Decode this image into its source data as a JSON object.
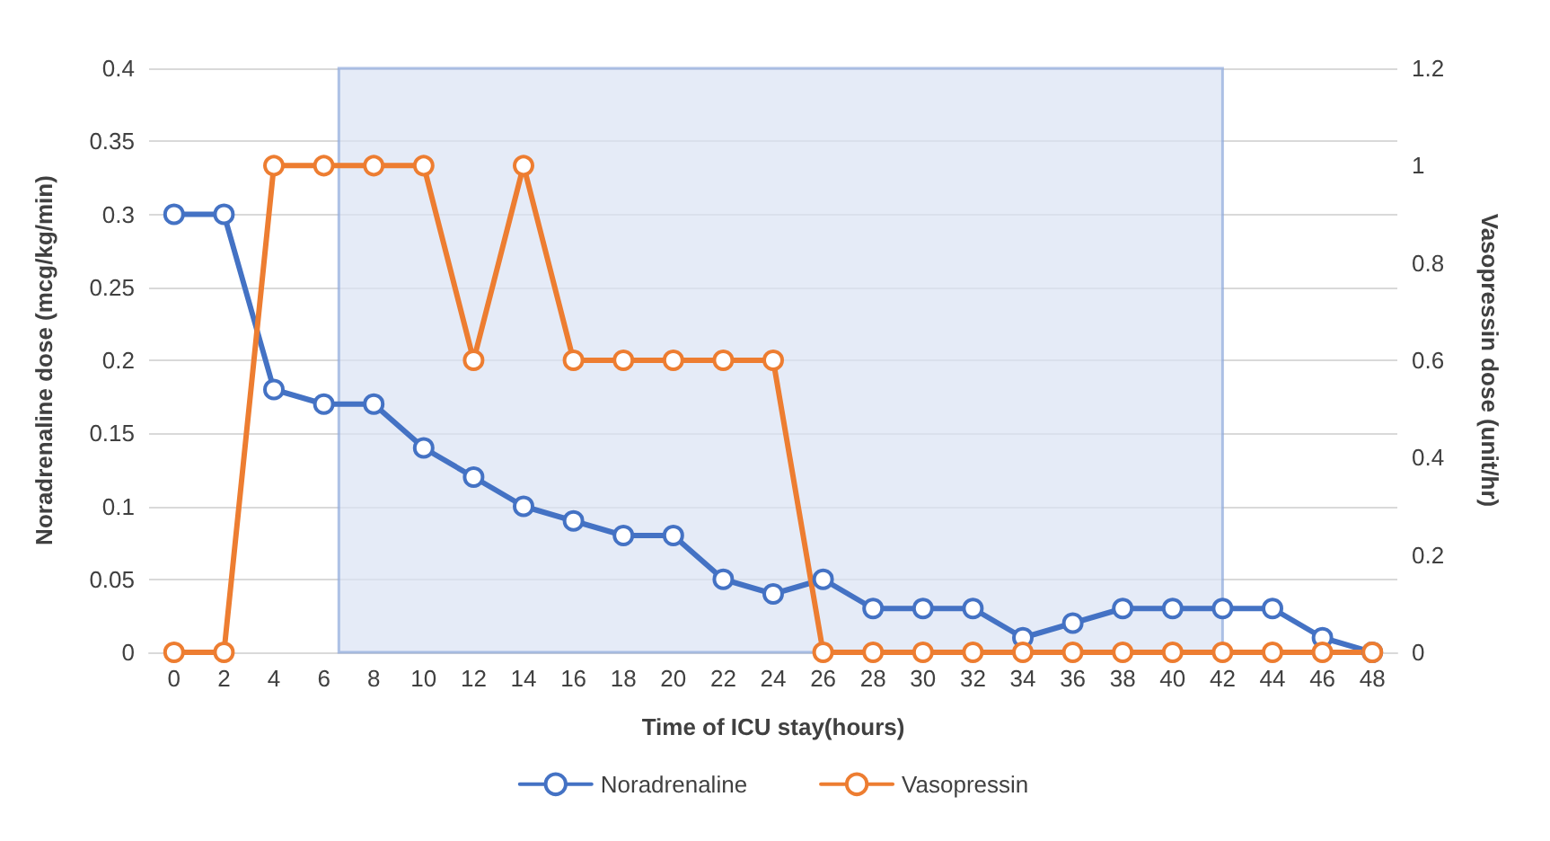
{
  "chart_data": {
    "type": "line",
    "xlabel": "Time of ICU stay(hours)",
    "ylabel": "Noradrenaline dose (mcg/kg/min)",
    "y2label": "Vasopressin dose (unit/hr)",
    "x": [
      0,
      2,
      4,
      6,
      8,
      10,
      12,
      14,
      16,
      18,
      20,
      22,
      24,
      26,
      28,
      30,
      32,
      34,
      36,
      38,
      40,
      42,
      44,
      46,
      48
    ],
    "xlim": [
      -1,
      49
    ],
    "xticks": [
      0,
      2,
      4,
      6,
      8,
      10,
      12,
      14,
      16,
      18,
      20,
      22,
      24,
      26,
      28,
      30,
      32,
      34,
      36,
      38,
      40,
      42,
      44,
      46,
      48
    ],
    "ylim": [
      0,
      0.4
    ],
    "yticks": [
      0,
      0.05,
      0.1,
      0.15,
      0.2,
      0.25,
      0.3,
      0.35,
      0.4
    ],
    "y2lim": [
      0,
      1.2
    ],
    "y2ticks": [
      0,
      0.2,
      0.4,
      0.6,
      0.8,
      1,
      1.2
    ],
    "series": [
      {
        "name": "Noradrenaline",
        "color": "#4472c4",
        "values": [
          0.3,
          0.3,
          0.18,
          0.17,
          0.17,
          0.14,
          0.12,
          0.1,
          0.09,
          0.08,
          0.08,
          0.05,
          0.04,
          0.05,
          0.03,
          0.03,
          0.03,
          0.01,
          0.02,
          0.03,
          0.03,
          0.03,
          0.03,
          0.01,
          0
        ]
      },
      {
        "name": "Vasopressin",
        "color": "#ed7d31",
        "axis": "y2",
        "values": [
          0,
          0,
          1,
          1,
          1,
          1,
          0.6,
          1,
          0.6,
          0.6,
          0.6,
          0.6,
          0.6,
          0,
          0,
          0,
          0,
          0,
          0,
          0,
          0,
          0,
          0,
          0,
          0
        ]
      }
    ],
    "bands": [
      {
        "axis": "x",
        "from": 6.6,
        "to": 42,
        "color": "#dae3f3"
      }
    ],
    "grid": "y",
    "legend": "bottom",
    "marker": "circle",
    "line_style": "solid"
  }
}
